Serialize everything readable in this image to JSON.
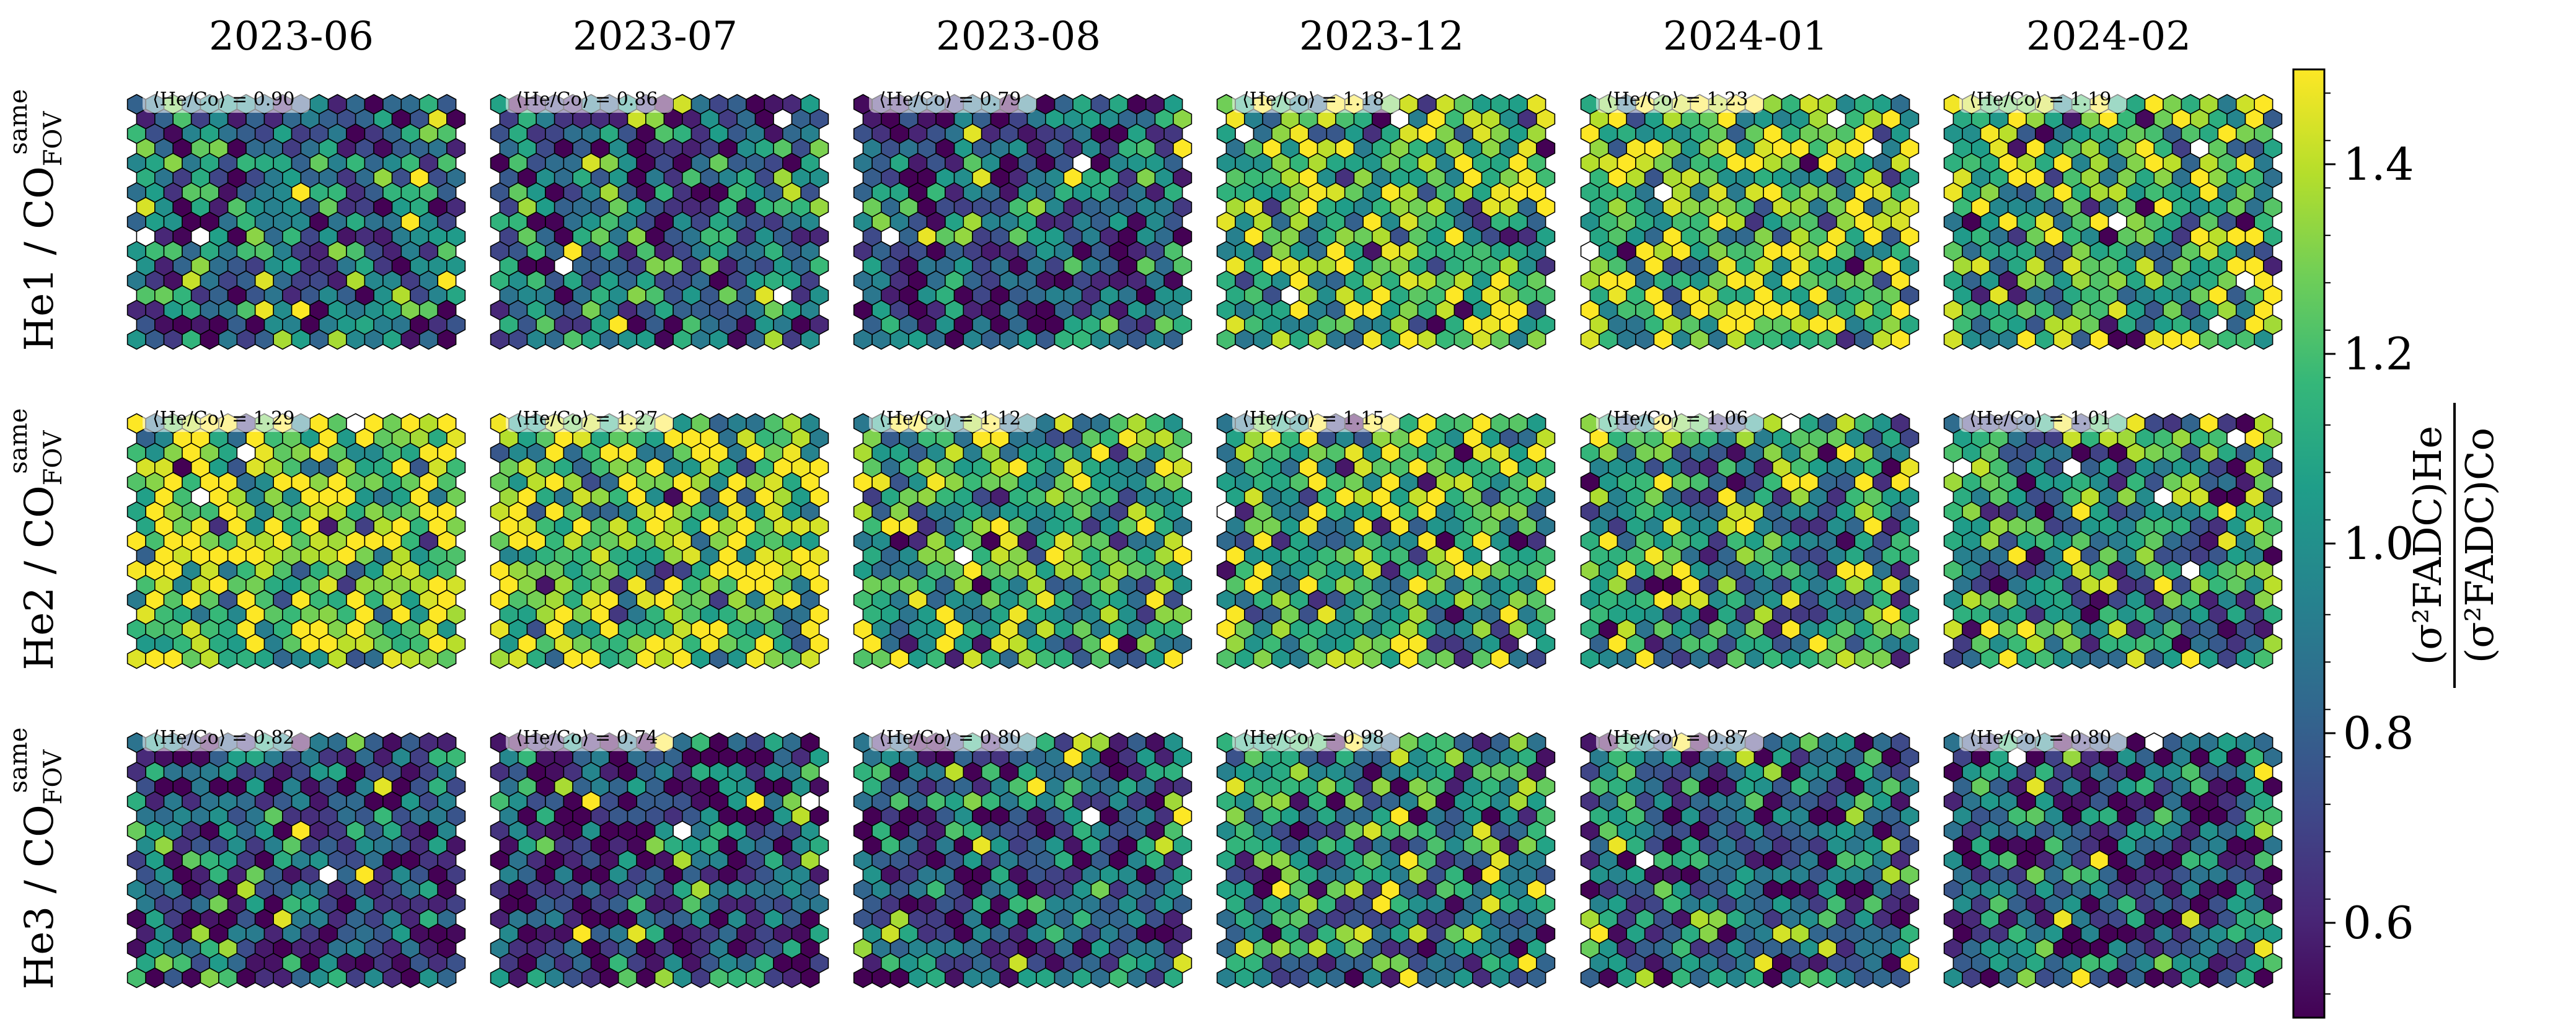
{
  "chart_data": {
    "type": "heatmap",
    "subtype": "hexagonal-pixel-camera-grid",
    "columns": [
      "2023-06",
      "2023-07",
      "2023-08",
      "2023-12",
      "2024-01",
      "2024-02"
    ],
    "rows": [
      {
        "name": "He1",
        "label": "He1 / CO",
        "sub": "FOV",
        "sup": "same"
      },
      {
        "name": "He2",
        "label": "He2 / CO",
        "sub": "FOV",
        "sup": "same"
      },
      {
        "name": "He3",
        "label": "He3 / CO",
        "sub": "FOV",
        "sup": "same"
      }
    ],
    "annotation_prefix": "⟨He/Co⟩ = ",
    "panel_means": [
      [
        0.9,
        0.86,
        0.79,
        1.18,
        1.23,
        1.19
      ],
      [
        1.29,
        1.27,
        1.12,
        1.15,
        1.06,
        1.01
      ],
      [
        0.82,
        0.74,
        0.8,
        0.98,
        0.87,
        0.8
      ]
    ],
    "colorbar": {
      "colormap": "viridis",
      "vmin": 0.5,
      "vmax": 1.5,
      "ticks": [
        0.6,
        0.8,
        1.0,
        1.2,
        1.4
      ],
      "tick_labels": [
        "0.6",
        "0.8",
        "1.0",
        "1.2",
        "1.4"
      ],
      "label_numerator": "(σ²FADC)He",
      "label_denominator": "(σ²FADC)Co",
      "colors": [
        "#440154",
        "#482878",
        "#3e4989",
        "#31688e",
        "#26828e",
        "#1f9e89",
        "#35b779",
        "#6ece58",
        "#b5de2b",
        "#fde725"
      ]
    },
    "hex_grid": {
      "cols": 18,
      "rows": 17
    },
    "saturated_color": "#ffffff",
    "edge_color": "#000000"
  }
}
